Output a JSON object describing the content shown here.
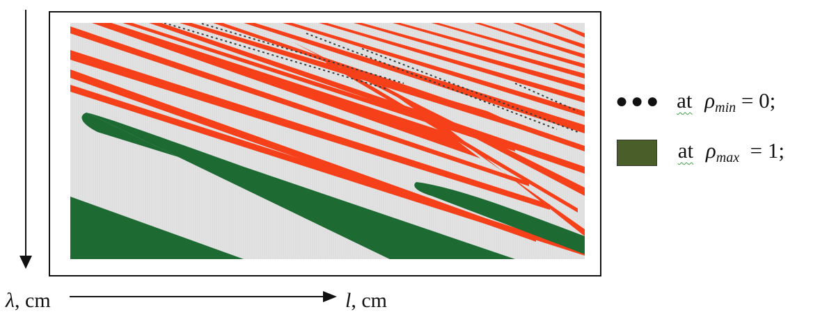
{
  "chart_data": {
    "type": "heatmap",
    "title": "",
    "xlabel": {
      "symbol": "l",
      "unit": ", cm"
    },
    "ylabel": {
      "symbol": "λ",
      "unit": ", cm"
    },
    "grid": false,
    "legend_position": "right",
    "colors": {
      "background": "#e4e4e4",
      "red_band": "#f6401a",
      "green_region": "#1d6a33",
      "dotted_line": "#3a3a3a",
      "legend_swatch": "#4a5e2a"
    },
    "legend": [
      {
        "marker": "dots",
        "text_before": "at",
        "symbol": "ρ",
        "subscript": "min",
        "text_after": " = 0;"
      },
      {
        "marker": "swatch",
        "text_before": "at",
        "symbol": "ρ",
        "subscript": "max",
        "text_after": "  = 1;"
      }
    ]
  }
}
